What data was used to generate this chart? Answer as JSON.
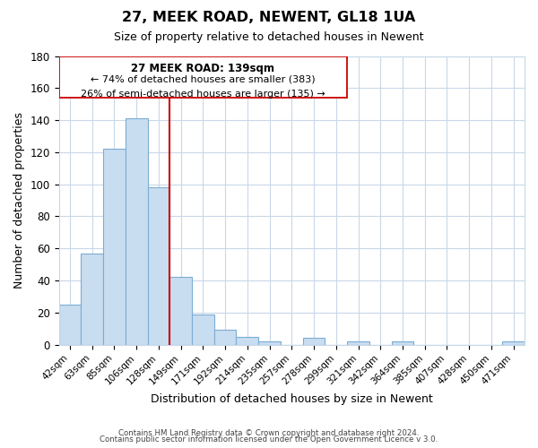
{
  "title": "27, MEEK ROAD, NEWENT, GL18 1UA",
  "subtitle": "Size of property relative to detached houses in Newent",
  "xlabel": "Distribution of detached houses by size in Newent",
  "ylabel": "Number of detached properties",
  "bar_color": "#c9ddf0",
  "bar_edge_color": "#7aadd4",
  "categories": [
    "42sqm",
    "63sqm",
    "85sqm",
    "106sqm",
    "128sqm",
    "149sqm",
    "171sqm",
    "192sqm",
    "214sqm",
    "235sqm",
    "257sqm",
    "278sqm",
    "299sqm",
    "321sqm",
    "342sqm",
    "364sqm",
    "385sqm",
    "407sqm",
    "428sqm",
    "450sqm",
    "471sqm"
  ],
  "values": [
    25,
    57,
    122,
    141,
    98,
    42,
    19,
    9,
    5,
    2,
    0,
    4,
    0,
    2,
    0,
    2,
    0,
    0,
    0,
    0,
    2
  ],
  "ylim": [
    0,
    180
  ],
  "yticks": [
    0,
    20,
    40,
    60,
    80,
    100,
    120,
    140,
    160,
    180
  ],
  "vline_index": 5,
  "vline_color": "#cc0000",
  "annotation_title": "27 MEEK ROAD: 139sqm",
  "annotation_line1": "← 74% of detached houses are smaller (383)",
  "annotation_line2": "26% of semi-detached houses are larger (135) →",
  "footer1": "Contains HM Land Registry data © Crown copyright and database right 2024.",
  "footer2": "Contains public sector information licensed under the Open Government Licence v 3.0.",
  "background_color": "#ffffff",
  "grid_color": "#c8d8e8"
}
